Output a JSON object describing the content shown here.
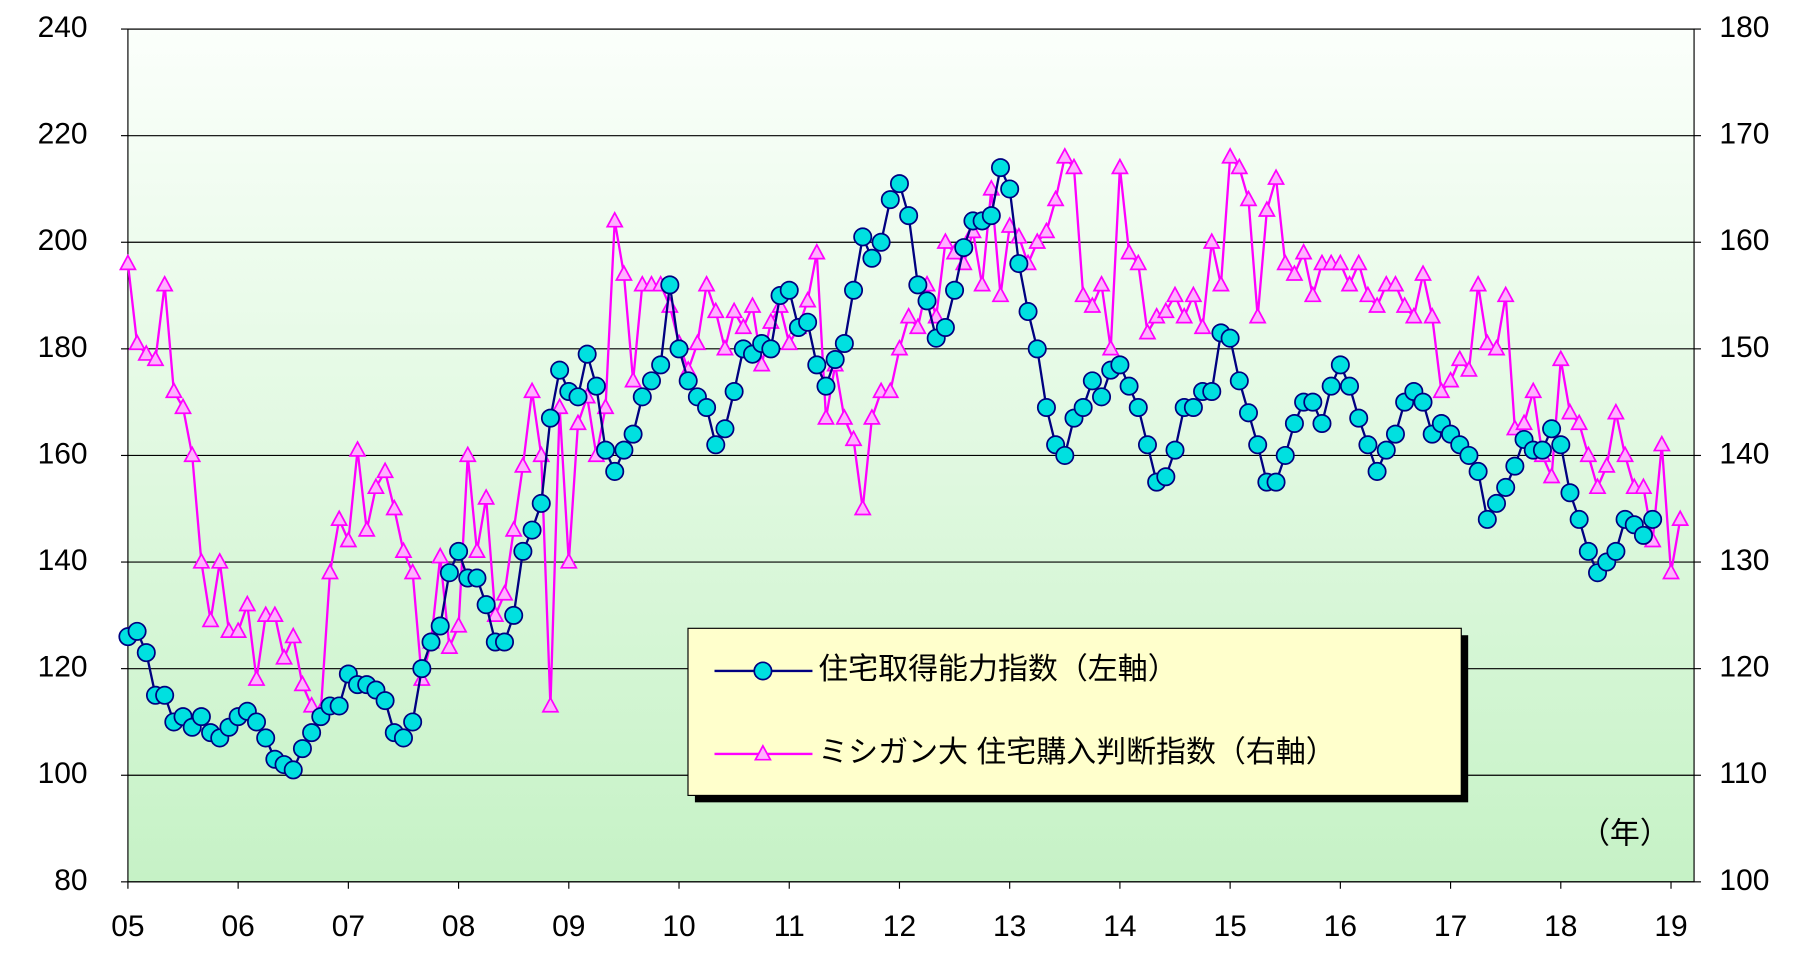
{
  "chart_data": {
    "type": "line",
    "annotation": "（年）",
    "categories": [
      "05",
      null,
      null,
      null,
      null,
      null,
      null,
      null,
      null,
      null,
      null,
      null,
      "06",
      null,
      null,
      null,
      null,
      null,
      null,
      null,
      null,
      null,
      null,
      null,
      "07",
      null,
      null,
      null,
      null,
      null,
      null,
      null,
      null,
      null,
      null,
      null,
      "08",
      null,
      null,
      null,
      null,
      null,
      null,
      null,
      null,
      null,
      null,
      null,
      "09",
      null,
      null,
      null,
      null,
      null,
      null,
      null,
      null,
      null,
      null,
      null,
      "10",
      null,
      null,
      null,
      null,
      null,
      null,
      null,
      null,
      null,
      null,
      null,
      "11",
      null,
      null,
      null,
      null,
      null,
      null,
      null,
      null,
      null,
      null,
      null,
      "12",
      null,
      null,
      null,
      null,
      null,
      null,
      null,
      null,
      null,
      null,
      null,
      "13",
      null,
      null,
      null,
      null,
      null,
      null,
      null,
      null,
      null,
      null,
      null,
      "14",
      null,
      null,
      null,
      null,
      null,
      null,
      null,
      null,
      null,
      null,
      null,
      "15",
      null,
      null,
      null,
      null,
      null,
      null,
      null,
      null,
      null,
      null,
      null,
      "16",
      null,
      null,
      null,
      null,
      null,
      null,
      null,
      null,
      null,
      null,
      null,
      "17",
      null,
      null,
      null,
      null,
      null,
      null,
      null,
      null,
      null,
      null,
      null,
      "18",
      null,
      null,
      null,
      null,
      null,
      null,
      null,
      null,
      null,
      null,
      null,
      "19",
      null
    ],
    "series": [
      {
        "name": "住宅取得能力指数（左軸）",
        "color": "#000080",
        "marker_color": "#00e0e0",
        "marker": "circle",
        "values": [
          126,
          127,
          123,
          115,
          115,
          110,
          111,
          109,
          111,
          108,
          107,
          109,
          111,
          112,
          110,
          107,
          103,
          102,
          101,
          105,
          108,
          111,
          113,
          113,
          119,
          117,
          117,
          116,
          114,
          108,
          107,
          110,
          120,
          125,
          128,
          138,
          142,
          137,
          137,
          132,
          125,
          125,
          130,
          142,
          146,
          151,
          167,
          176,
          172,
          171,
          179,
          173,
          161,
          157,
          161,
          164,
          171,
          174,
          177,
          192,
          180,
          174,
          171,
          169,
          162,
          165,
          172,
          180,
          179,
          181,
          180,
          190,
          191,
          184,
          185,
          177,
          173,
          178,
          181,
          191,
          201,
          197,
          200,
          208,
          211,
          205,
          192,
          189,
          182,
          184,
          191,
          199,
          204,
          204,
          205,
          214,
          210,
          196,
          187,
          180,
          169,
          162,
          160,
          167,
          169,
          174,
          171,
          176,
          177,
          173,
          169,
          162,
          155,
          156,
          161,
          169,
          169,
          172,
          172,
          183,
          182,
          174,
          168,
          162,
          155,
          155,
          160,
          166,
          170,
          170,
          166,
          173,
          177,
          173,
          167,
          162,
          157,
          161,
          164,
          170,
          172,
          170,
          164,
          166,
          164,
          162,
          160,
          157,
          148,
          151,
          154,
          158,
          163,
          161,
          161,
          165,
          162,
          153,
          148,
          142,
          138,
          140,
          142,
          148,
          147,
          145,
          148,
          null,
          null,
          null
        ]
      },
      {
        "name": "ミシガン大 住宅購入判断指数（右軸）",
        "color": "#ff00ff",
        "marker_color": "#ffb0ff",
        "marker": "triangle",
        "axis": "y2",
        "values": [
          158,
          150.5,
          149.5,
          149,
          156,
          146,
          144.5,
          140,
          130,
          124.5,
          130,
          123.5,
          123.5,
          126,
          119,
          125,
          125,
          121,
          123,
          118.5,
          116.5,
          116,
          129,
          134,
          132,
          140.5,
          133,
          137,
          138.5,
          135,
          131,
          129,
          119,
          122.5,
          130.5,
          122,
          124,
          140,
          131,
          136,
          125,
          127,
          133,
          139,
          146,
          140,
          116.5,
          144.5,
          130,
          143,
          145.5,
          140,
          144.5,
          162,
          157,
          147,
          156,
          156,
          156,
          154,
          150.5,
          148,
          150.5,
          156,
          153.5,
          150,
          153.5,
          152,
          154,
          148.5,
          152.5,
          154,
          150.5,
          152,
          154.5,
          159,
          143.5,
          148.5,
          143.5,
          141.5,
          135,
          143.5,
          146,
          146,
          150,
          153,
          152,
          156,
          153,
          160,
          159,
          158,
          161,
          156,
          165,
          155,
          161.5,
          160.5,
          158,
          160,
          161,
          164,
          168,
          167,
          155,
          154,
          156,
          150,
          167,
          159,
          158,
          151.5,
          153,
          153.5,
          155,
          153,
          155,
          152,
          160,
          156,
          168,
          167,
          164,
          153,
          163,
          166,
          158,
          157,
          159,
          155,
          158,
          158,
          158,
          156,
          158,
          155,
          154,
          156,
          156,
          154,
          153,
          157,
          153,
          146,
          147,
          149,
          148,
          156,
          150.5,
          150,
          155,
          142.5,
          143,
          146,
          140,
          138,
          149,
          144,
          143,
          140,
          137,
          139,
          144,
          140,
          137,
          137,
          132,
          141,
          129,
          134
        ]
      }
    ],
    "ylim": [
      80,
      240
    ],
    "yticks": [
      80,
      100,
      120,
      140,
      160,
      180,
      200,
      220,
      240
    ],
    "y2lim": [
      100,
      180
    ],
    "y2ticks": [
      100,
      110,
      120,
      130,
      140,
      150,
      160,
      170,
      180
    ],
    "grid": true
  }
}
